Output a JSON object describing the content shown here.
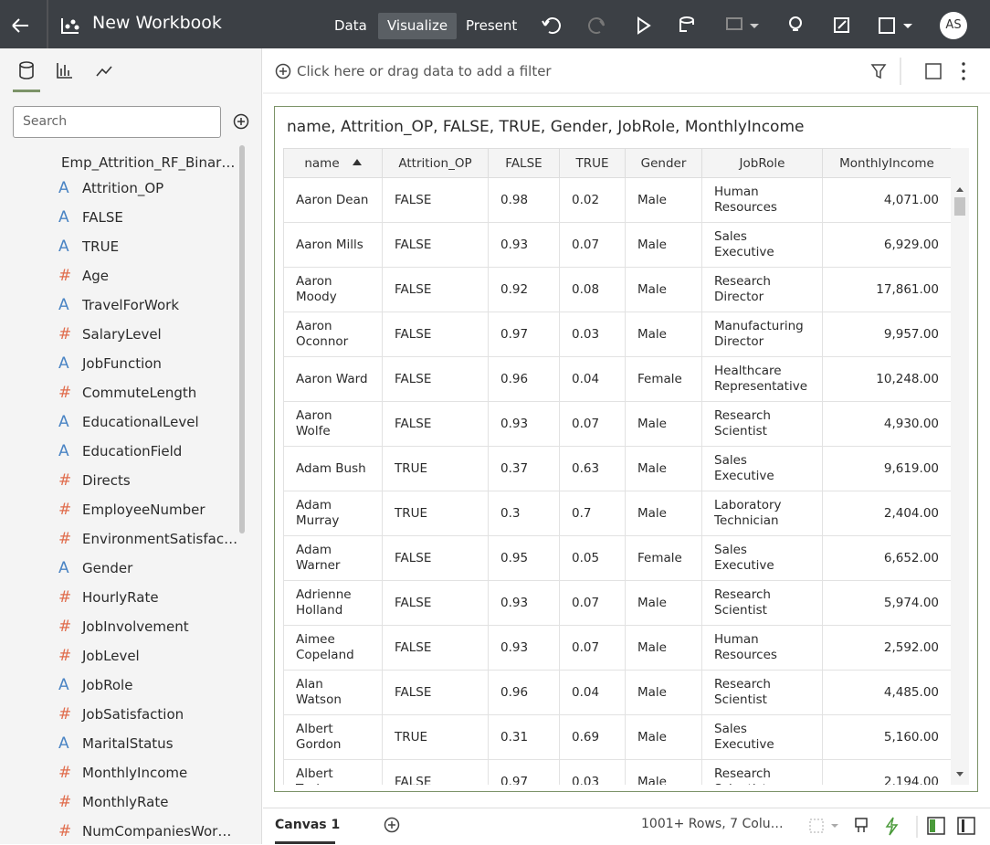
{
  "header": {
    "title": "New Workbook",
    "tabs": [
      "Data",
      "Visualize",
      "Present"
    ],
    "avatar": "AS"
  },
  "filter_bar": {
    "placeholder": "Click here or drag data to add a filter"
  },
  "sidebar": {
    "search": "Search",
    "dataset": "Emp_Attrition_RF_Binar…",
    "fields": [
      {
        "icon": "A",
        "label": "Attrition_OP"
      },
      {
        "icon": "A",
        "label": "FALSE"
      },
      {
        "icon": "A",
        "label": "TRUE"
      },
      {
        "icon": "#",
        "label": "Age"
      },
      {
        "icon": "A",
        "label": "TravelForWork"
      },
      {
        "icon": "#",
        "label": "SalaryLevel"
      },
      {
        "icon": "A",
        "label": "JobFunction"
      },
      {
        "icon": "#",
        "label": "CommuteLength"
      },
      {
        "icon": "A",
        "label": "EducationalLevel"
      },
      {
        "icon": "A",
        "label": "EducationField"
      },
      {
        "icon": "#",
        "label": "Directs"
      },
      {
        "icon": "#",
        "label": "EmployeeNumber"
      },
      {
        "icon": "#",
        "label": "EnvironmentSatisfac…"
      },
      {
        "icon": "A",
        "label": "Gender"
      },
      {
        "icon": "#",
        "label": "HourlyRate"
      },
      {
        "icon": "#",
        "label": "JobInvolvement"
      },
      {
        "icon": "#",
        "label": "JobLevel"
      },
      {
        "icon": "A",
        "label": "JobRole"
      },
      {
        "icon": "#",
        "label": "JobSatisfaction"
      },
      {
        "icon": "A",
        "label": "MaritalStatus"
      },
      {
        "icon": "#",
        "label": "MonthlyIncome"
      },
      {
        "icon": "#",
        "label": "MonthlyRate"
      },
      {
        "icon": "#",
        "label": "NumCompaniesWor…"
      }
    ]
  },
  "table": {
    "title": "name, Attrition_OP, FALSE, TRUE, Gender, JobRole, MonthlyIncome",
    "columns": [
      "name",
      "Attrition_OP",
      "FALSE",
      "TRUE",
      "Gender",
      "JobRole",
      "MonthlyIncome"
    ],
    "rows": [
      [
        "Aaron Dean",
        "FALSE",
        "0.98",
        "0.02",
        "Male",
        "Human Resources",
        "4,071.00"
      ],
      [
        "Aaron Mills",
        "FALSE",
        "0.93",
        "0.07",
        "Male",
        "Sales Executive",
        "6,929.00"
      ],
      [
        "Aaron Moody",
        "FALSE",
        "0.92",
        "0.08",
        "Male",
        "Research Director",
        "17,861.00"
      ],
      [
        "Aaron Oconnor",
        "FALSE",
        "0.97",
        "0.03",
        "Male",
        "Manufacturing Director",
        "9,957.00"
      ],
      [
        "Aaron Ward",
        "FALSE",
        "0.96",
        "0.04",
        "Female",
        "Healthcare Representative",
        "10,248.00"
      ],
      [
        "Aaron Wolfe",
        "FALSE",
        "0.93",
        "0.07",
        "Male",
        "Research Scientist",
        "4,930.00"
      ],
      [
        "Adam Bush",
        "TRUE",
        "0.37",
        "0.63",
        "Male",
        "Sales Executive",
        "9,619.00"
      ],
      [
        "Adam Murray",
        "TRUE",
        "0.3",
        "0.7",
        "Male",
        "Laboratory Technician",
        "2,404.00"
      ],
      [
        "Adam Warner",
        "FALSE",
        "0.95",
        "0.05",
        "Female",
        "Sales Executive",
        "6,652.00"
      ],
      [
        "Adrienne Holland",
        "FALSE",
        "0.93",
        "0.07",
        "Male",
        "Research Scientist",
        "5,974.00"
      ],
      [
        "Aimee Copeland",
        "FALSE",
        "0.93",
        "0.07",
        "Male",
        "Human Resources",
        "2,592.00"
      ],
      [
        "Alan Watson",
        "FALSE",
        "0.96",
        "0.04",
        "Male",
        "Research Scientist",
        "4,485.00"
      ],
      [
        "Albert Gordon",
        "TRUE",
        "0.31",
        "0.69",
        "Male",
        "Sales Executive",
        "5,160.00"
      ],
      [
        "Albert Taylor",
        "FALSE",
        "0.97",
        "0.03",
        "Male",
        "Research Scientist",
        "2,194.00"
      ]
    ]
  },
  "footer": {
    "canvas": "Canvas 1",
    "status": "1001+ Rows, 7 Colu…"
  }
}
